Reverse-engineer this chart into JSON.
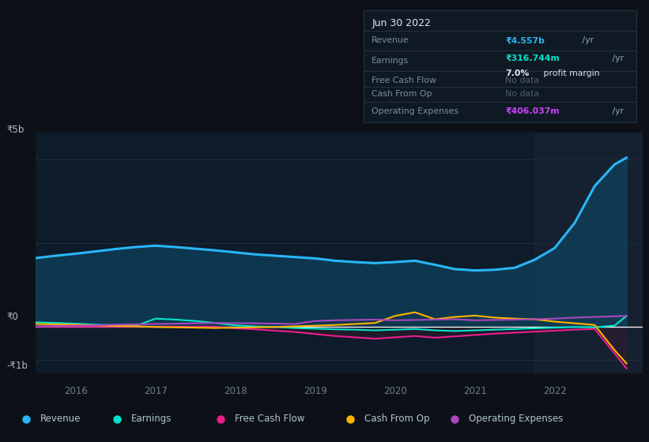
{
  "bg_color": "#0d1117",
  "plot_bg_color": "#0d1b2a",
  "highlight_bg_color": "#152030",
  "grid_color": "#1e2d3d",
  "zero_line_color": "#ffffff",
  "ylim": [
    -1400000000.0,
    5800000000.0
  ],
  "xlim_start": 2015.5,
  "xlim_end": 2023.1,
  "highlight_x_start": 2021.75,
  "legend": [
    {
      "label": "Revenue",
      "color": "#29b6f6"
    },
    {
      "label": "Earnings",
      "color": "#00e5cc"
    },
    {
      "label": "Free Cash Flow",
      "color": "#e91e8c"
    },
    {
      "label": "Cash From Op",
      "color": "#ffb300"
    },
    {
      "label": "Operating Expenses",
      "color": "#ab47bc"
    }
  ],
  "revenue_x": [
    2015.5,
    2015.75,
    2016.0,
    2016.25,
    2016.5,
    2016.75,
    2017.0,
    2017.25,
    2017.5,
    2017.75,
    2018.0,
    2018.25,
    2018.5,
    2018.75,
    2019.0,
    2019.25,
    2019.5,
    2019.75,
    2020.0,
    2020.25,
    2020.5,
    2020.75,
    2021.0,
    2021.25,
    2021.5,
    2021.75,
    2022.0,
    2022.25,
    2022.5,
    2022.75,
    2022.9
  ],
  "revenue_y": [
    2050000000.0,
    2120000000.0,
    2180000000.0,
    2250000000.0,
    2320000000.0,
    2380000000.0,
    2420000000.0,
    2380000000.0,
    2330000000.0,
    2280000000.0,
    2220000000.0,
    2160000000.0,
    2120000000.0,
    2080000000.0,
    2040000000.0,
    1970000000.0,
    1930000000.0,
    1900000000.0,
    1930000000.0,
    1970000000.0,
    1850000000.0,
    1720000000.0,
    1680000000.0,
    1700000000.0,
    1760000000.0,
    2000000000.0,
    2350000000.0,
    3100000000.0,
    4200000000.0,
    4850000000.0,
    5050000000.0
  ],
  "earnings_x": [
    2015.5,
    2015.75,
    2016.0,
    2016.25,
    2016.5,
    2016.75,
    2017.0,
    2017.25,
    2017.5,
    2017.75,
    2018.0,
    2018.25,
    2018.5,
    2018.75,
    2019.0,
    2019.25,
    2019.5,
    2019.75,
    2020.0,
    2020.25,
    2020.5,
    2020.75,
    2021.0,
    2021.25,
    2021.5,
    2021.75,
    2022.0,
    2022.25,
    2022.5,
    2022.75,
    2022.9
  ],
  "earnings_y": [
    130000000.0,
    110000000.0,
    90000000.0,
    60000000.0,
    40000000.0,
    20000000.0,
    240000000.0,
    210000000.0,
    170000000.0,
    110000000.0,
    40000000.0,
    5000000.0,
    -10000000.0,
    -40000000.0,
    -60000000.0,
    -80000000.0,
    -90000000.0,
    -110000000.0,
    -90000000.0,
    -70000000.0,
    -110000000.0,
    -130000000.0,
    -110000000.0,
    -90000000.0,
    -70000000.0,
    -50000000.0,
    -30000000.0,
    -10000000.0,
    -20000000.0,
    30000000.0,
    320000000.0
  ],
  "fcf_x": [
    2015.5,
    2015.75,
    2016.0,
    2016.25,
    2016.5,
    2016.75,
    2017.0,
    2017.25,
    2017.5,
    2017.75,
    2018.0,
    2018.25,
    2018.5,
    2018.75,
    2019.0,
    2019.25,
    2019.5,
    2019.75,
    2020.0,
    2020.25,
    2020.5,
    2020.75,
    2021.0,
    2021.25,
    2021.5,
    2021.75,
    2022.0,
    2022.25,
    2022.5,
    2022.75,
    2022.9
  ],
  "fcf_y": [
    0,
    0,
    0,
    0,
    0,
    0,
    0,
    0,
    0,
    0,
    -50000000.0,
    -80000000.0,
    -120000000.0,
    -160000000.0,
    -220000000.0,
    -280000000.0,
    -320000000.0,
    -360000000.0,
    -320000000.0,
    -280000000.0,
    -330000000.0,
    -290000000.0,
    -250000000.0,
    -210000000.0,
    -180000000.0,
    -150000000.0,
    -120000000.0,
    -90000000.0,
    -70000000.0,
    -800000000.0,
    -1250000000.0
  ],
  "cfo_x": [
    2015.5,
    2015.75,
    2016.0,
    2016.25,
    2016.5,
    2016.75,
    2017.0,
    2017.25,
    2017.5,
    2017.75,
    2018.0,
    2018.25,
    2018.5,
    2018.75,
    2019.0,
    2019.25,
    2019.5,
    2019.75,
    2020.0,
    2020.25,
    2020.5,
    2020.75,
    2021.0,
    2021.25,
    2021.5,
    2021.75,
    2022.0,
    2022.25,
    2022.5,
    2022.75,
    2022.9
  ],
  "cfo_y": [
    80000000.0,
    70000000.0,
    60000000.0,
    40000000.0,
    20000000.0,
    10000000.0,
    -10000000.0,
    -20000000.0,
    -30000000.0,
    -40000000.0,
    -30000000.0,
    -20000000.0,
    -10000000.0,
    10000000.0,
    30000000.0,
    50000000.0,
    80000000.0,
    110000000.0,
    320000000.0,
    430000000.0,
    220000000.0,
    290000000.0,
    330000000.0,
    270000000.0,
    240000000.0,
    220000000.0,
    150000000.0,
    100000000.0,
    50000000.0,
    -700000000.0,
    -1100000000.0
  ],
  "oe_x": [
    2015.5,
    2015.75,
    2016.0,
    2016.25,
    2016.5,
    2016.75,
    2017.0,
    2017.25,
    2017.5,
    2017.75,
    2018.0,
    2018.25,
    2018.5,
    2018.75,
    2019.0,
    2019.25,
    2019.5,
    2019.75,
    2020.0,
    2020.25,
    2020.5,
    2020.75,
    2021.0,
    2021.25,
    2021.5,
    2021.75,
    2022.0,
    2022.25,
    2022.5,
    2022.75,
    2022.9
  ],
  "oe_y": [
    10000000.0,
    20000000.0,
    30000000.0,
    40000000.0,
    60000000.0,
    70000000.0,
    80000000.0,
    90000000.0,
    100000000.0,
    110000000.0,
    105000000.0,
    100000000.0,
    90000000.0,
    80000000.0,
    170000000.0,
    190000000.0,
    200000000.0,
    210000000.0,
    190000000.0,
    200000000.0,
    210000000.0,
    220000000.0,
    190000000.0,
    200000000.0,
    210000000.0,
    220000000.0,
    240000000.0,
    270000000.0,
    290000000.0,
    310000000.0,
    320000000.0
  ]
}
